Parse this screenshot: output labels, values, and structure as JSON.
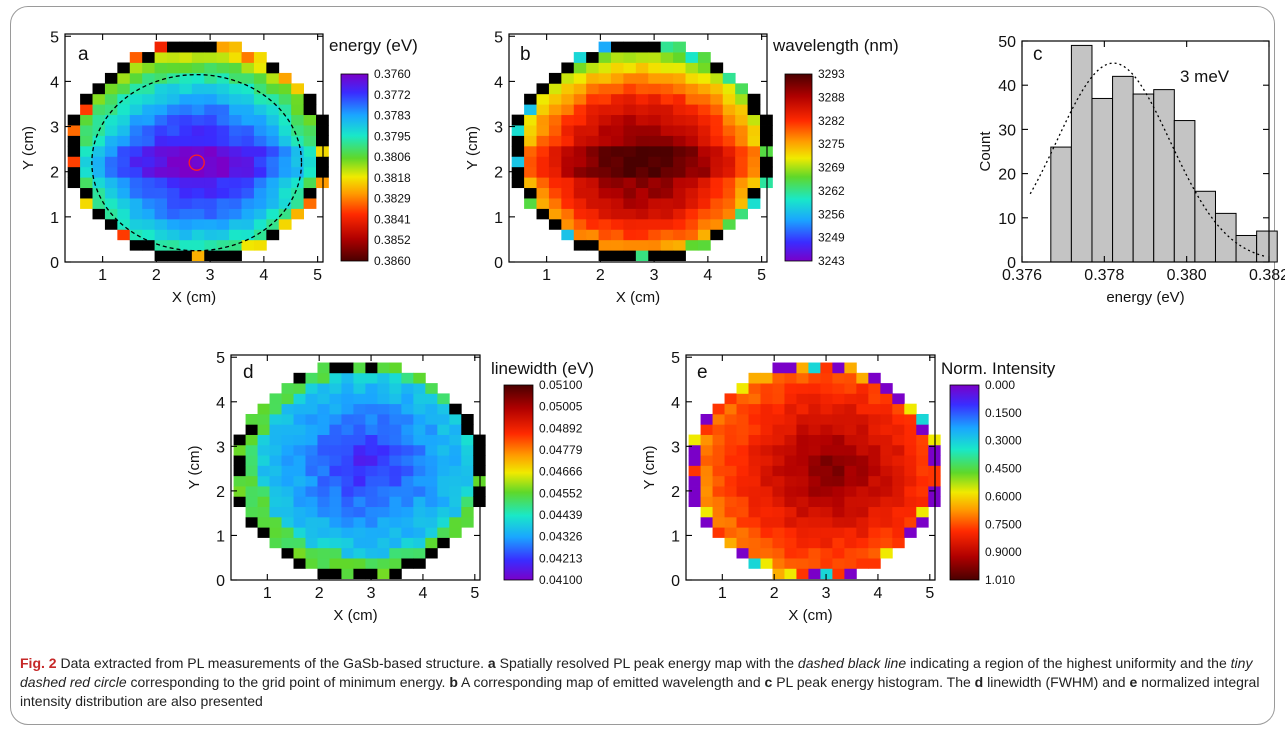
{
  "caption": {
    "label": "Fig. 2",
    "parts": [
      {
        "t": "n",
        "s": " Data extracted from PL measurements of the GaSb-based structure. "
      },
      {
        "t": "b",
        "s": "a"
      },
      {
        "t": "n",
        "s": " Spatially resolved PL peak energy map with the "
      },
      {
        "t": "i",
        "s": "dashed black line"
      },
      {
        "t": "n",
        "s": " indicating a region of the highest uniformity and the "
      },
      {
        "t": "i",
        "s": "tiny dashed red circle"
      },
      {
        "t": "n",
        "s": " corresponding to the grid point of minimum energy. "
      },
      {
        "t": "b",
        "s": "b"
      },
      {
        "t": "n",
        "s": " A corresponding map of emitted wavelength and "
      },
      {
        "t": "b",
        "s": "c"
      },
      {
        "t": "n",
        "s": " PL peak energy histogram. The "
      },
      {
        "t": "b",
        "s": "d"
      },
      {
        "t": "n",
        "s": " linewidth (FWHM) and "
      },
      {
        "t": "b",
        "s": "e"
      },
      {
        "t": "n",
        "s": " normalized integral intensity distribution are also presented"
      }
    ]
  },
  "chart_data": [
    {
      "type": "heatmap",
      "panel": "a",
      "xlabel": "X (cm)",
      "ylabel": "Y (cm)",
      "xlim": [
        0.3,
        5.1
      ],
      "ylim": [
        0,
        5.05
      ],
      "xticks": [
        "1",
        "2",
        "3",
        "4",
        "5"
      ],
      "yticks": [
        "0",
        "1",
        "2",
        "3",
        "4",
        "5"
      ],
      "grid": {
        "nx": 21,
        "ny": 21,
        "x0": 0.35,
        "y0": 0.03,
        "step": 0.231
      },
      "field": {
        "type": "radial",
        "center": [
          2.75,
          2.2
        ],
        "edge_ratio": 0.9,
        "horizontal_band": 0.06
      },
      "colorbar": {
        "title": "energy (eV)",
        "ticks": [
          "0.3760",
          "0.3772",
          "0.3783",
          "0.3795",
          "0.3806",
          "0.3818",
          "0.3829",
          "0.3841",
          "0.3852",
          "0.3860"
        ],
        "direction": "top_low"
      },
      "annotations": {
        "uniform_region_circle": {
          "center": [
            2.75,
            2.2
          ],
          "radius": 1.95
        },
        "min_energy_circle": {
          "center": [
            2.75,
            2.2
          ],
          "radius": 0.14
        }
      }
    },
    {
      "type": "heatmap",
      "panel": "b",
      "xlabel": "X (cm)",
      "ylabel": "Y (cm)",
      "xlim": [
        0.3,
        5.1
      ],
      "ylim": [
        0,
        5.05
      ],
      "xticks": [
        "1",
        "2",
        "3",
        "4",
        "5"
      ],
      "yticks": [
        "0",
        "1",
        "2",
        "3",
        "4",
        "5"
      ],
      "grid": {
        "nx": 21,
        "ny": 21,
        "x0": 0.35,
        "y0": 0.03,
        "step": 0.231
      },
      "field": {
        "type": "radial",
        "center": [
          2.75,
          2.2
        ],
        "edge_ratio": 0.9,
        "horizontal_band": 0.06
      },
      "colorbar": {
        "title": "wavelength (nm)",
        "ticks": [
          "3293",
          "3288",
          "3282",
          "3275",
          "3269",
          "3262",
          "3256",
          "3249",
          "3243"
        ],
        "direction": "top_high"
      }
    },
    {
      "type": "bar",
      "panel": "c",
      "xlabel": "energy (eV)",
      "ylabel": "Count",
      "xlim": [
        0.376,
        0.382
      ],
      "ylim": [
        0,
        50
      ],
      "xticks": [
        "0.376",
        "0.378",
        "0.380",
        "0.382"
      ],
      "yticks": [
        "0",
        "10",
        "20",
        "30",
        "40",
        "50"
      ],
      "bin_edges": [
        0.3767,
        0.3772,
        0.3777,
        0.3782,
        0.3787,
        0.3792,
        0.3797,
        0.3802,
        0.3807,
        0.3812,
        0.3817,
        0.3822
      ],
      "values": [
        26,
        49,
        37,
        42,
        38,
        39,
        32,
        16,
        11,
        6,
        7
      ],
      "fit": {
        "type": "gaussian",
        "mean": 0.37822,
        "amplitude": 45,
        "sigma": 0.00138
      },
      "annotation": "3 meV"
    },
    {
      "type": "heatmap",
      "panel": "d",
      "xlabel": "X (cm)",
      "ylabel": "Y (cm)",
      "xlim": [
        0.3,
        5.1
      ],
      "ylim": [
        0,
        5.05
      ],
      "xticks": [
        "1",
        "2",
        "3",
        "4",
        "5"
      ],
      "yticks": [
        "0",
        "1",
        "2",
        "3",
        "4",
        "5"
      ],
      "grid": {
        "nx": 21,
        "ny": 21,
        "x0": 0.35,
        "y0": 0.03,
        "step": 0.231
      },
      "field": {
        "type": "linewidth",
        "center": [
          2.9,
          2.6
        ]
      },
      "colorbar": {
        "title": "linewidth (eV)",
        "ticks": [
          "0.05100",
          "0.05005",
          "0.04892",
          "0.04779",
          "0.04666",
          "0.04552",
          "0.04439",
          "0.04326",
          "0.04213",
          "0.04100"
        ],
        "direction": "top_high"
      }
    },
    {
      "type": "heatmap",
      "panel": "e",
      "xlabel": "X (cm)",
      "ylabel": "Y (cm)",
      "xlim": [
        0.3,
        5.1
      ],
      "ylim": [
        0,
        5.05
      ],
      "xticks": [
        "1",
        "2",
        "3",
        "4",
        "5"
      ],
      "yticks": [
        "0",
        "1",
        "2",
        "3",
        "4",
        "5"
      ],
      "grid": {
        "nx": 21,
        "ny": 21,
        "x0": 0.35,
        "y0": 0.03,
        "step": 0.231
      },
      "field": {
        "type": "intensity",
        "center": [
          3.1,
          2.5
        ]
      },
      "colorbar": {
        "title": "Norm. Intensity",
        "ticks": [
          "0.000",
          "0.1500",
          "0.3000",
          "0.4500",
          "0.6000",
          "0.7500",
          "0.9000",
          "1.010"
        ],
        "direction": "top_low_violet"
      }
    }
  ]
}
